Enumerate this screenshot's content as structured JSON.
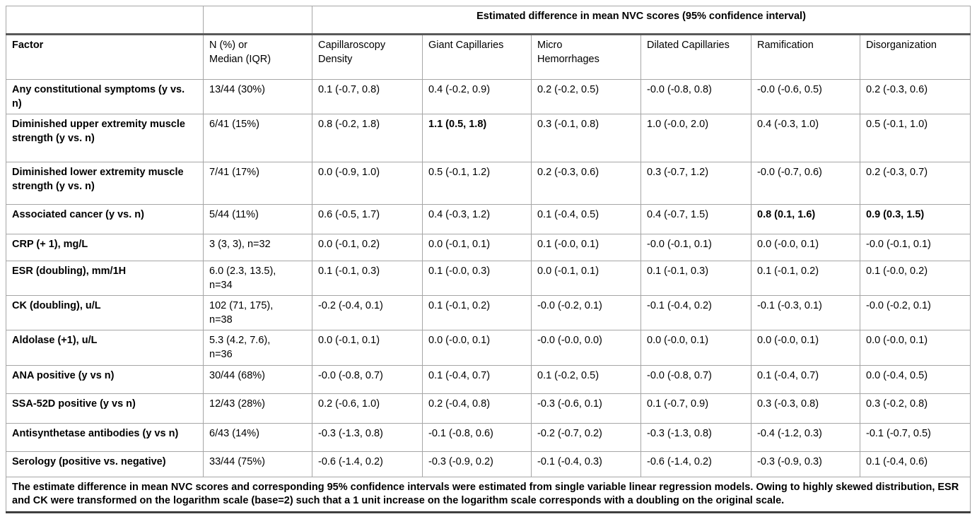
{
  "table": {
    "spanner_header": "Estimated difference in mean NVC scores (95% confidence interval)",
    "columns": [
      "Factor",
      "N (%) or\nMedian (IQR)",
      "Capillaroscopy\nDensity",
      "Giant Capillaries",
      "Micro\nHemorrhages",
      "Dilated Capillaries",
      "Ramification",
      "Disorganization"
    ],
    "rows": [
      {
        "factor": "Any constitutional symptoms (y vs. n)",
        "n": "13/44 (30%)",
        "values": [
          "0.1 (-0.7, 0.8)",
          "0.4 (-0.2, 0.9)",
          "0.2 (-0.2, 0.5)",
          "-0.0 (-0.8, 0.8)",
          "-0.0 (-0.6, 0.5)",
          "0.2 (-0.3, 0.6)"
        ],
        "bold": []
      },
      {
        "factor": "Diminished upper extremity muscle strength (y vs. n)",
        "n": "6/41 (15%)",
        "values": [
          "0.8 (-0.2, 1.8)",
          "1.1 (0.5, 1.8)",
          "0.3 (-0.1, 0.8)",
          "1.0 (-0.0, 2.0)",
          "0.4 (-0.3, 1.0)",
          "0.5 (-0.1, 1.0)"
        ],
        "bold": [
          1
        ]
      },
      {
        "factor": "Diminished lower extremity muscle strength (y vs. n)",
        "n": "7/41 (17%)",
        "values": [
          "0.0 (-0.9, 1.0)",
          "0.5 (-0.1, 1.2)",
          "0.2 (-0.3, 0.6)",
          "0.3 (-0.7, 1.2)",
          "-0.0 (-0.7, 0.6)",
          "0.2 (-0.3, 0.7)"
        ],
        "bold": []
      },
      {
        "factor": "Associated cancer (y vs. n)",
        "n": "5/44 (11%)",
        "values": [
          "0.6 (-0.5, 1.7)",
          "0.4 (-0.3, 1.2)",
          "0.1 (-0.4, 0.5)",
          "0.4 (-0.7, 1.5)",
          "0.8 (0.1, 1.6)",
          "0.9 (0.3, 1.5)"
        ],
        "bold": [
          4,
          5
        ]
      },
      {
        "factor": "CRP (+ 1), mg/L",
        "n": "3 (3, 3), n=32",
        "values": [
          "0.0 (-0.1, 0.2)",
          "0.0 (-0.1, 0.1)",
          "0.1 (-0.0, 0.1)",
          "-0.0 (-0.1, 0.1)",
          "0.0 (-0.0, 0.1)",
          "-0.0 (-0.1, 0.1)"
        ],
        "bold": []
      },
      {
        "factor": "ESR (doubling), mm/1H",
        "n": "6.0 (2.3, 13.5),\nn=34",
        "values": [
          "0.1 (-0.1, 0.3)",
          "0.1 (-0.0, 0.3)",
          "0.0 (-0.1, 0.1)",
          "0.1 (-0.1, 0.3)",
          "0.1 (-0.1, 0.2)",
          "0.1 (-0.0, 0.2)"
        ],
        "bold": []
      },
      {
        "factor": "CK (doubling), u/L",
        "n": "102 (71, 175),\nn=38",
        "values": [
          "-0.2 (-0.4, 0.1)",
          "0.1 (-0.1, 0.2)",
          "-0.0 (-0.2, 0.1)",
          "-0.1 (-0.4, 0.2)",
          "-0.1 (-0.3, 0.1)",
          "-0.0 (-0.2, 0.1)"
        ],
        "bold": []
      },
      {
        "factor": "Aldolase (+1),  u/L",
        "n": "5.3 (4.2, 7.6),\nn=36",
        "values": [
          "0.0 (-0.1, 0.1)",
          "0.0 (-0.0, 0.1)",
          "-0.0 (-0.0, 0.0)",
          "0.0 (-0.0, 0.1)",
          "0.0 (-0.0, 0.1)",
          "0.0 (-0.0, 0.1)"
        ],
        "bold": []
      },
      {
        "factor": "ANA positive (y vs n)",
        "n": "30/44 (68%)",
        "values": [
          "-0.0 (-0.8, 0.7)",
          "0.1 (-0.4, 0.7)",
          "0.1 (-0.2, 0.5)",
          "-0.0 (-0.8, 0.7)",
          "0.1 (-0.4, 0.7)",
          "0.0 (-0.4, 0.5)"
        ],
        "bold": []
      },
      {
        "factor": "SSA-52D positive (y vs n)",
        "n": "12/43 (28%)",
        "values": [
          "0.2 (-0.6, 1.0)",
          "0.2 (-0.4, 0.8)",
          "-0.3 (-0.6, 0.1)",
          "0.1 (-0.7, 0.9)",
          "0.3 (-0.3, 0.8)",
          "0.3 (-0.2, 0.8)"
        ],
        "bold": []
      },
      {
        "factor": "Antisynthetase antibodies (y vs n)",
        "n": "6/43 (14%)",
        "values": [
          "-0.3 (-1.3, 0.8)",
          "-0.1 (-0.8, 0.6)",
          "-0.2 (-0.7, 0.2)",
          "-0.3 (-1.3, 0.8)",
          "-0.4 (-1.2, 0.3)",
          "-0.1 (-0.7, 0.5)"
        ],
        "bold": []
      },
      {
        "factor": "Serology (positive vs. negative)",
        "n": "33/44 (75%)",
        "values": [
          "-0.6 (-1.4, 0.2)",
          "-0.3 (-0.9, 0.2)",
          "-0.1 (-0.4, 0.3)",
          "-0.6 (-1.4, 0.2)",
          "-0.3 (-0.9, 0.3)",
          "0.1 (-0.4, 0.6)"
        ],
        "bold": []
      }
    ],
    "footnote": "The estimate difference in mean NVC scores and corresponding 95% confidence intervals were estimated from single variable linear regression models.  Owing to highly skewed distribution, ESR and CK were transformed on the logarithm scale (base=2) such that a 1 unit increase on the logarithm scale corresponds with a doubling on the original scale."
  }
}
